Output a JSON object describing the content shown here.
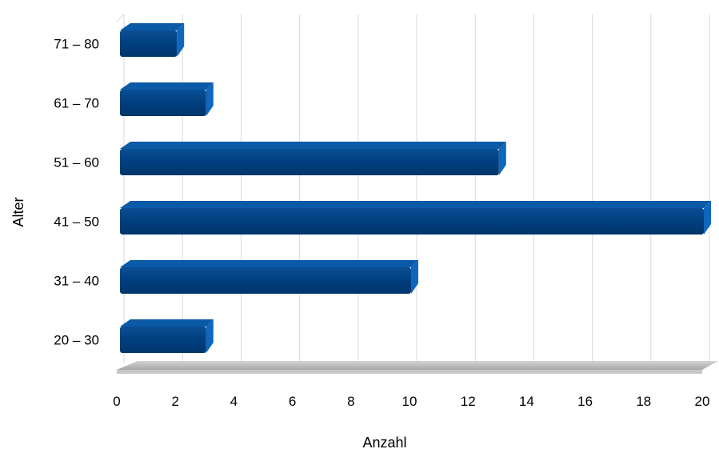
{
  "chart_data": {
    "type": "bar",
    "orientation": "horizontal",
    "categories": [
      "20 – 30",
      "31 – 40",
      "41 – 50",
      "51 – 60",
      "61 – 70",
      "71 – 80"
    ],
    "values": [
      3,
      10,
      20,
      13,
      3,
      2
    ],
    "xlabel": "Anzahl",
    "ylabel": "Alter",
    "xlim": [
      0,
      20
    ],
    "xticks": [
      "0",
      "2",
      "4",
      "6",
      "8",
      "10",
      "12",
      "14",
      "16",
      "18",
      "20"
    ],
    "grid": "vertical",
    "legend": "none",
    "bar_color": "#003f7f",
    "bar_side_color": "#0b5aa8",
    "floor_color": "#bfbfbf"
  }
}
